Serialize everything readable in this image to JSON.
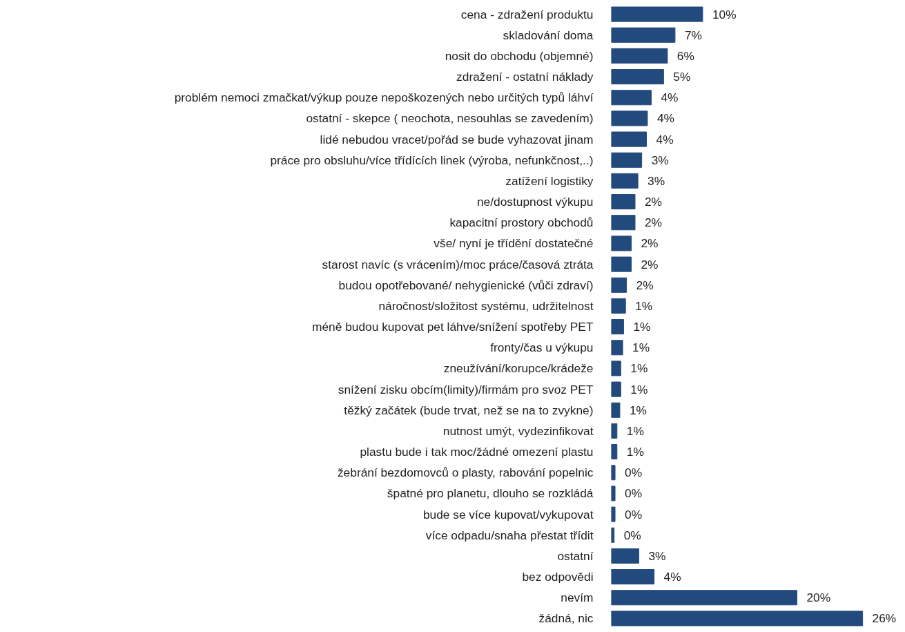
{
  "chart_data": {
    "type": "bar",
    "orientation": "horizontal",
    "color": "#224a7c",
    "grid": false,
    "categories": [
      "cena - zdražení produktu",
      "skladování doma",
      "nosit do obchodu (objemné)",
      "zdražení - ostatní náklady",
      "problém nemoci zmačkat/výkup pouze nepoškozených nebo určitých typů láhví",
      "ostatní - skepce ( neochota, nesouhlas se zavedením)",
      "lidé nebudou vracet/pořád se bude vyhazovat jinam",
      "práce pro obsluhu/více třídících linek (výroba, nefunkčnost,..)",
      "zatížení logistiky",
      "ne/dostupnost výkupu",
      "kapacitní prostory obchodů",
      "vše/ nyní je třídění dostatečné",
      "starost navíc (s vrácením)/moc práce/časová ztráta",
      "budou opotřebované/ nehygienické (vůči zdraví)",
      "náročnost/složitost systému, udržitelnost",
      "méně budou kupovat pet láhve/snížení spotřeby PET",
      "fronty/čas u výkupu",
      "zneužívání/korupce/krádeže",
      "snížení zisku obcím(limity)/firmám pro svoz PET",
      "těžký začátek (bude trvat, než se na to zvykne)",
      "nutnost umýt, vydezinfikovat",
      "plastu bude i tak moc/žádné omezení plastu",
      "žebrání bezdomovců o plasty, rabování popelnic",
      "špatné pro planetu, dlouho se rozkládá",
      "bude se více kupovat/vykupovat",
      "více odpadu/snaha přestat třídit",
      "ostatní",
      "bez odpovědi",
      "nevím",
      "žádná, nic"
    ],
    "values": [
      9.6,
      6.7,
      5.9,
      5.5,
      4.2,
      3.8,
      3.7,
      3.2,
      2.8,
      2.5,
      2.5,
      2.1,
      2.1,
      1.6,
      1.5,
      1.3,
      1.2,
      1.0,
      1.0,
      0.9,
      0.6,
      0.6,
      0.4,
      0.4,
      0.4,
      0.3,
      2.9,
      4.5,
      19.5,
      26.4
    ],
    "value_labels": [
      "10%",
      "7%",
      "6%",
      "5%",
      "4%",
      "4%",
      "4%",
      "3%",
      "3%",
      "2%",
      "2%",
      "2%",
      "2%",
      "2%",
      "1%",
      "1%",
      "1%",
      "1%",
      "1%",
      "1%",
      "1%",
      "1%",
      "0%",
      "0%",
      "0%",
      "0%",
      "3%",
      "4%",
      "20%",
      "26%"
    ]
  }
}
